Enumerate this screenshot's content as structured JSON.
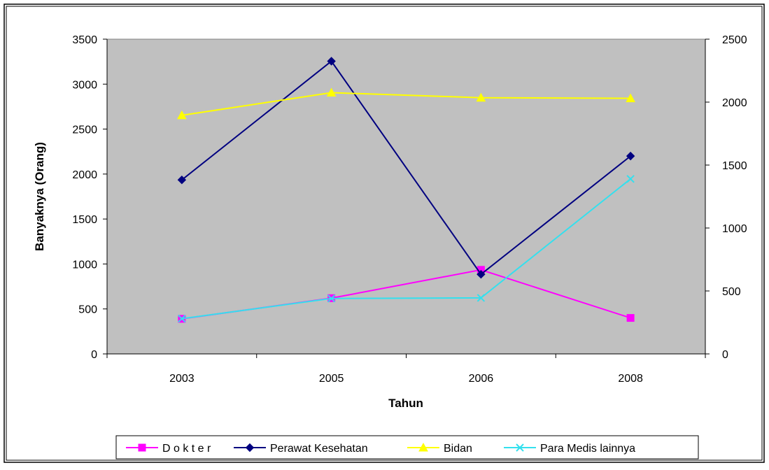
{
  "chart_data": {
    "type": "line",
    "title": "",
    "xlabel": "Tahun",
    "ylabel": "Banyaknya (Orang)",
    "categories": [
      "2003",
      "2005",
      "2006",
      "2008"
    ],
    "y_left": {
      "min": 0,
      "max": 3500,
      "ticks": [
        "0",
        "500",
        "1000",
        "1500",
        "2000",
        "2500",
        "3000",
        "3500"
      ]
    },
    "y_right": {
      "min": 0,
      "max": 2500,
      "ticks": [
        "0",
        "500",
        "1000",
        "1500",
        "2000",
        "2500"
      ]
    },
    "plot_background": "#c0c0c0",
    "grid": false,
    "legend_position": "bottom",
    "series": [
      {
        "name": "D o k t e r",
        "axis": "left",
        "color": "#ff00ff",
        "marker": "square",
        "values": [
          390,
          620,
          935,
          400
        ]
      },
      {
        "name": "Perawat Kesehatan",
        "axis": "left",
        "color": "#000080",
        "marker": "diamond",
        "values": [
          1935,
          3255,
          885,
          2200
        ]
      },
      {
        "name": "Bidan",
        "axis": "right",
        "color": "#ffff00",
        "marker": "triangle",
        "values": [
          1895,
          2075,
          2035,
          2030
        ]
      },
      {
        "name": "Para Medis lainnya",
        "axis": "right",
        "color": "#33e0ee",
        "marker": "x",
        "values": [
          280,
          440,
          445,
          1390
        ]
      }
    ]
  }
}
